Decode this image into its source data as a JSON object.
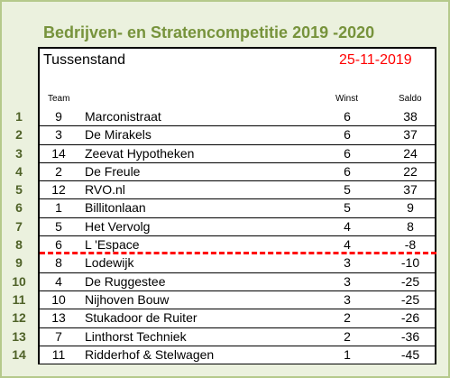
{
  "title": "Bedrijven- en Stratencompetitie 2019 -2020",
  "subtitle": "Tussenstand",
  "date": "25-11-2019",
  "headers": {
    "team": "Team",
    "winst": "Winst",
    "saldo": "Saldo"
  },
  "colors": {
    "title": "#77933c",
    "rank": "#4f6228",
    "date": "#ff0000",
    "background": "#ebf1de",
    "cutoff_line": "#ff0000"
  },
  "cutoff_after_rank": 8,
  "rows": [
    {
      "rank": "1",
      "team": "9",
      "name": "Marconistraat",
      "winst": "6",
      "saldo": "38"
    },
    {
      "rank": "2",
      "team": "3",
      "name": "De Mirakels",
      "winst": "6",
      "saldo": "37"
    },
    {
      "rank": "3",
      "team": "14",
      "name": "Zeevat Hypotheken",
      "winst": "6",
      "saldo": "24"
    },
    {
      "rank": "4",
      "team": "2",
      "name": "De Freule",
      "winst": "6",
      "saldo": "22"
    },
    {
      "rank": "5",
      "team": "12",
      "name": "RVO.nl",
      "winst": "5",
      "saldo": "37"
    },
    {
      "rank": "6",
      "team": "1",
      "name": "Billitonlaan",
      "winst": "5",
      "saldo": "9"
    },
    {
      "rank": "7",
      "team": "5",
      "name": "Het Vervolg",
      "winst": "4",
      "saldo": "8"
    },
    {
      "rank": "8",
      "team": "6",
      "name": "L 'Espace",
      "winst": "4",
      "saldo": "-8"
    },
    {
      "rank": "9",
      "team": "8",
      "name": "Lodewijk",
      "winst": "3",
      "saldo": "-10"
    },
    {
      "rank": "10",
      "team": "4",
      "name": "De Ruggestee",
      "winst": "3",
      "saldo": "-25"
    },
    {
      "rank": "11",
      "team": "10",
      "name": "Nijhoven Bouw",
      "winst": "3",
      "saldo": "-25"
    },
    {
      "rank": "12",
      "team": "13",
      "name": "Stukadoor de Ruiter",
      "winst": "2",
      "saldo": "-26"
    },
    {
      "rank": "13",
      "team": "7",
      "name": "Linthorst Techniek",
      "winst": "2",
      "saldo": "-36"
    },
    {
      "rank": "14",
      "team": "11",
      "name": "Ridderhof & Stelwagen",
      "winst": "1",
      "saldo": "-45"
    }
  ]
}
